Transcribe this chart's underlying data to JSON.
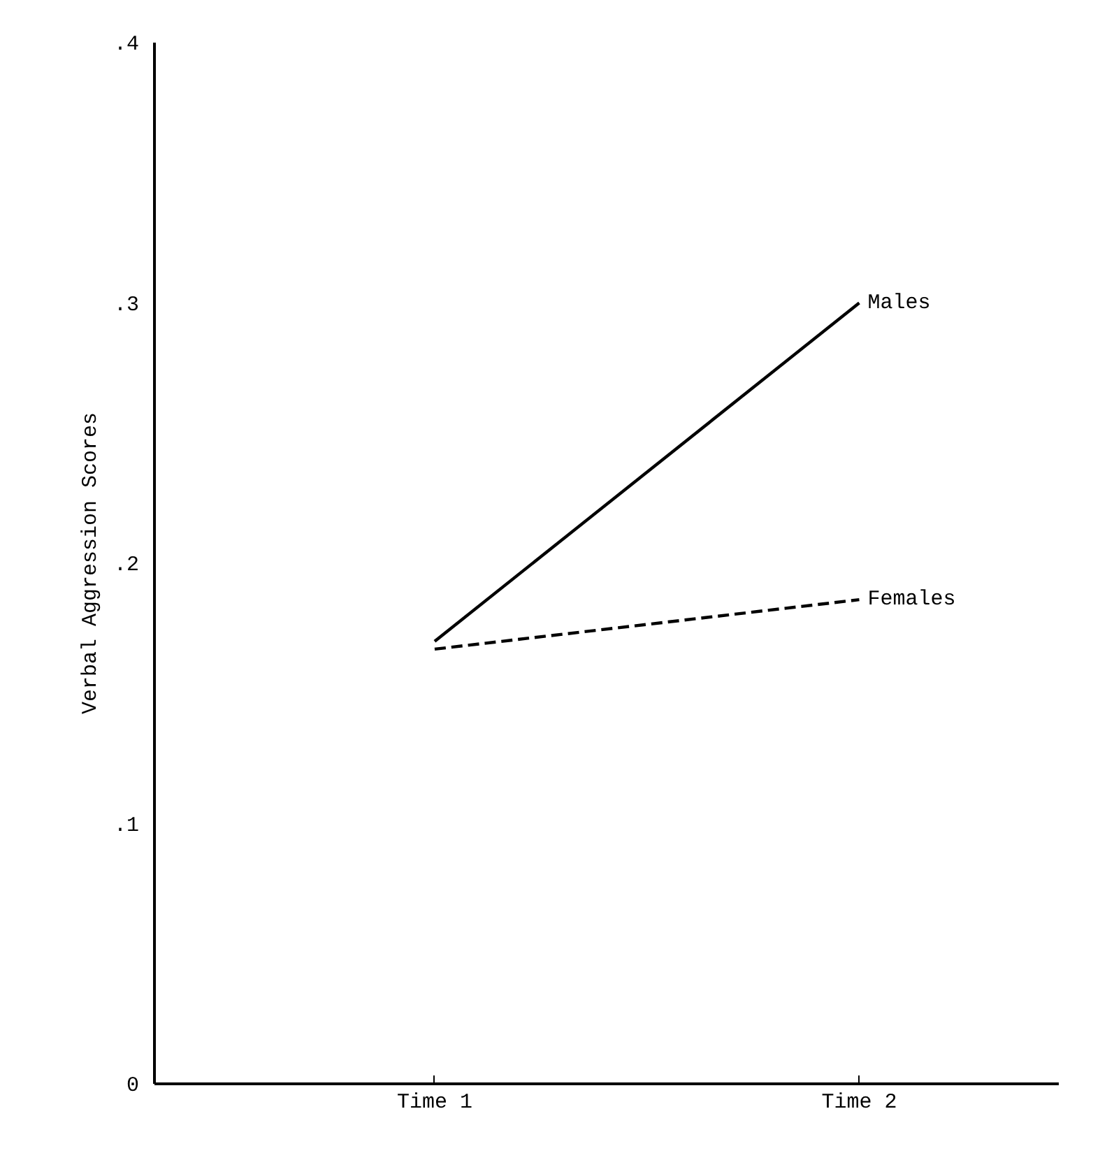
{
  "chart_data": {
    "type": "line",
    "ylabel": "Verbal Aggression Scores",
    "categories": [
      "Time 1",
      "Time 2"
    ],
    "ylim": [
      0,
      0.4
    ],
    "yticks": [
      0,
      {
        "value": 0.1,
        "label": ".1"
      },
      {
        "value": 0.2,
        "label": ".2"
      },
      {
        "value": 0.3,
        "label": ".3"
      },
      {
        "value": 0.4,
        "label": ".4"
      }
    ],
    "marker": "none",
    "series": [
      {
        "name": "Males",
        "color": "#000000",
        "values": [
          0.17,
          0.3
        ],
        "line_style": "solid"
      },
      {
        "name": "Females",
        "color": "#000000",
        "values": [
          0.167,
          0.186
        ],
        "line_style": "dashed"
      }
    ]
  }
}
